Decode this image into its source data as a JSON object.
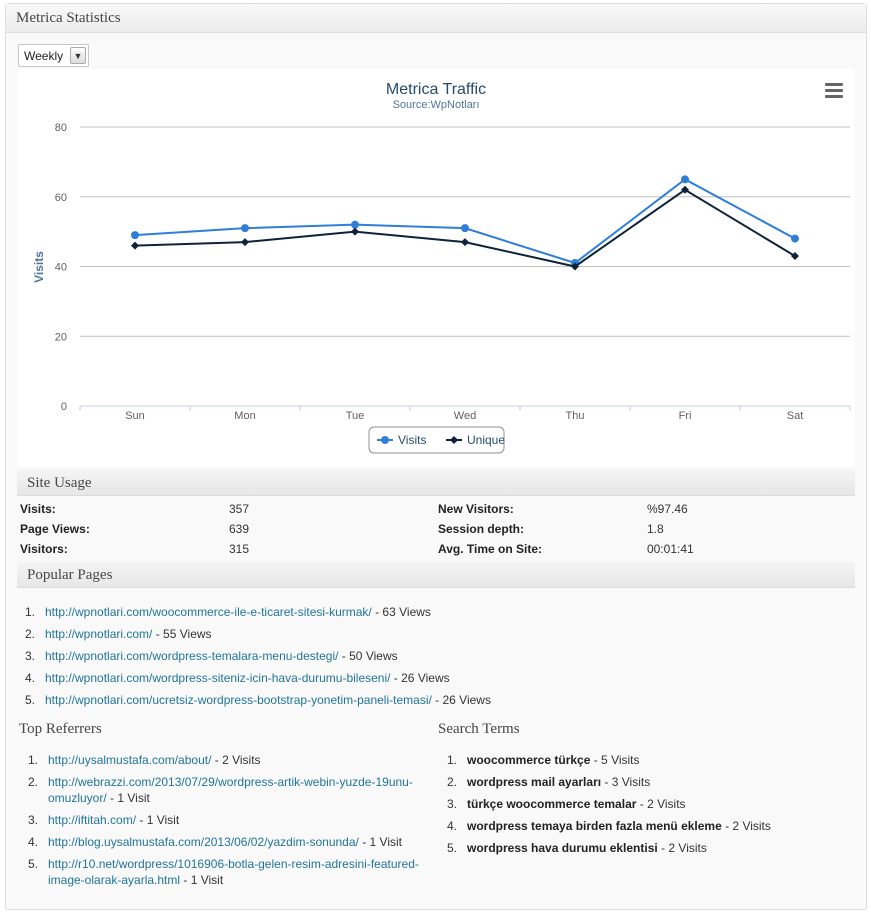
{
  "widget": {
    "title": "Metrica Statistics"
  },
  "period_select": {
    "selected": "Weekly"
  },
  "chart_data": {
    "type": "line",
    "title": "Metrica Traffic",
    "subtitle": "Source:WpNotları",
    "ylabel": "Visits",
    "xlabel": "",
    "ylim": [
      0,
      80
    ],
    "yticks": [
      0,
      20,
      40,
      60,
      80
    ],
    "categories": [
      "Sun",
      "Mon",
      "Tue",
      "Wed",
      "Thu",
      "Fri",
      "Sat"
    ],
    "series": [
      {
        "name": "Visits",
        "color": "#2f7ed8",
        "values": [
          49,
          51,
          52,
          51,
          41,
          65,
          48
        ]
      },
      {
        "name": "Unique",
        "color": "#0d233a",
        "values": [
          46,
          47,
          50,
          47,
          40,
          62,
          43
        ]
      }
    ],
    "grid": true,
    "legend": "bottom-center"
  },
  "site_usage": {
    "title": "Site Usage",
    "rows": [
      {
        "label": "Visits:",
        "value": "357",
        "label2": "New Visitors:",
        "value2": "%97.46"
      },
      {
        "label": "Page Views:",
        "value": "639",
        "label2": "Session depth:",
        "value2": "1.8"
      },
      {
        "label": "Visitors:",
        "value": "315",
        "label2": "Avg. Time on Site:",
        "value2": "00:01:41"
      }
    ]
  },
  "popular_pages": {
    "title": "Popular Pages",
    "items": [
      {
        "num": "1.",
        "url": "http://wpnotlari.com/woocommerce-ile-e-ticaret-sitesi-kurmak/",
        "count": " - 63 Views"
      },
      {
        "num": "2.",
        "url": "http://wpnotlari.com/",
        "count": " - 55 Views"
      },
      {
        "num": "3.",
        "url": "http://wpnotlari.com/wordpress-temalara-menu-destegi/",
        "count": " - 50 Views"
      },
      {
        "num": "4.",
        "url": "http://wpnotlari.com/wordpress-siteniz-icin-hava-durumu-bileseni/",
        "count": " - 26 Views"
      },
      {
        "num": "5.",
        "url": "http://wpnotlari.com/ucretsiz-wordpress-bootstrap-yonetim-paneli-temasi/",
        "count": " - 26 Views"
      }
    ]
  },
  "top_referrers": {
    "title": "Top Referrers",
    "items": [
      {
        "num": "1.",
        "url": "http://uysalmustafa.com/about/",
        "count": " - 2 Visits"
      },
      {
        "num": "2.",
        "url": "http://webrazzi.com/2013/07/29/wordpress-artik-webin-yuzde-19unu-omuzluyor/",
        "count": " - 1 Visit"
      },
      {
        "num": "3.",
        "url": "http://iftitah.com/",
        "count": " - 1 Visit"
      },
      {
        "num": "4.",
        "url": "http://blog.uysalmustafa.com/2013/06/02/yazdim-sonunda/",
        "count": " - 1 Visit"
      },
      {
        "num": "5.",
        "url": "http://r10.net/wordpress/1016906-botla-gelen-resim-adresini-featured-image-olarak-ayarla.html",
        "count": " - 1 Visit"
      }
    ]
  },
  "search_terms": {
    "title": "Search Terms",
    "items": [
      {
        "num": "1.",
        "term": "woocommerce türkçe",
        "count": " - 5 Visits"
      },
      {
        "num": "2.",
        "term": "wordpress mail ayarları",
        "count": " - 3 Visits"
      },
      {
        "num": "3.",
        "term": "türkçe woocommerce temalar",
        "count": " - 2 Visits"
      },
      {
        "num": "4.",
        "term": "wordpress temaya birden fazla menü ekleme",
        "count": " - 2 Visits"
      },
      {
        "num": "5.",
        "term": "wordpress hava durumu eklentisi",
        "count": " - 2 Visits"
      }
    ]
  }
}
